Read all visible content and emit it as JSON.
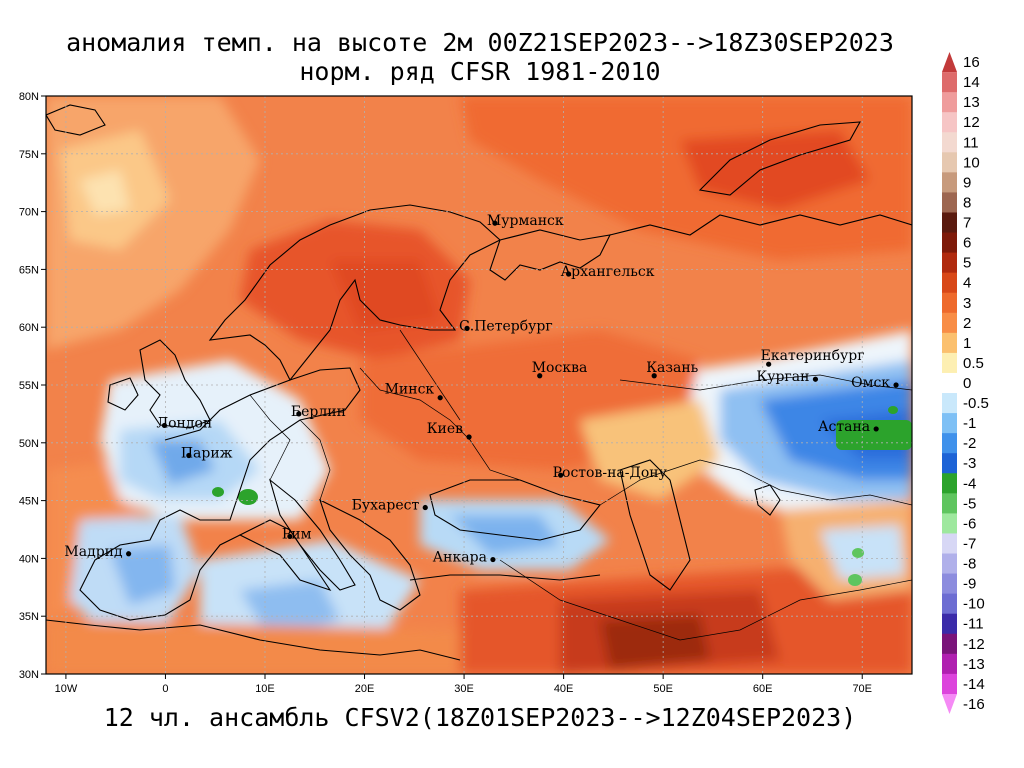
{
  "title_line1": "аномалия темп. на высоте 2м 00Z21SEP2023-->18Z30SEP2023",
  "title_line2": "норм. ряд CFSR 1981-2010",
  "footer": "12 чл. ансамбль CFSV2(18Z01SEP2023-->12Z04SEP2023)",
  "map": {
    "lon_range": [
      -12,
      75
    ],
    "lat_range": [
      30,
      80
    ],
    "lon_ticks": [
      "10W",
      "0",
      "10E",
      "20E",
      "30E",
      "40E",
      "50E",
      "60E",
      "70E"
    ],
    "lat_ticks": [
      "30N",
      "35N",
      "40N",
      "45N",
      "50N",
      "55N",
      "60N",
      "65N",
      "70N",
      "75N",
      "80N"
    ],
    "cities": [
      {
        "name": "Мурманск",
        "lon": 33.1,
        "lat": 69.0
      },
      {
        "name": "Архангельск",
        "lon": 40.5,
        "lat": 64.6
      },
      {
        "name": "С.Петербург",
        "lon": 30.3,
        "lat": 59.9
      },
      {
        "name": "Москва",
        "lon": 37.6,
        "lat": 55.8
      },
      {
        "name": "Казань",
        "lon": 49.1,
        "lat": 55.8
      },
      {
        "name": "Екатеринбург",
        "lon": 60.6,
        "lat": 56.8
      },
      {
        "name": "Курган",
        "lon": 65.3,
        "lat": 55.5
      },
      {
        "name": "Омск",
        "lon": 73.4,
        "lat": 55.0
      },
      {
        "name": "Астана",
        "lon": 71.4,
        "lat": 51.2
      },
      {
        "name": "Минск",
        "lon": 27.6,
        "lat": 53.9
      },
      {
        "name": "Берлин",
        "lon": 13.4,
        "lat": 52.5
      },
      {
        "name": "Лондон",
        "lon": -0.1,
        "lat": 51.5
      },
      {
        "name": "Париж",
        "lon": 2.35,
        "lat": 48.9
      },
      {
        "name": "Киев",
        "lon": 30.5,
        "lat": 50.5
      },
      {
        "name": "Ростов-на-Дону",
        "lon": 39.7,
        "lat": 47.2
      },
      {
        "name": "Бухарест",
        "lon": 26.1,
        "lat": 44.4
      },
      {
        "name": "Рим",
        "lon": 12.5,
        "lat": 41.9
      },
      {
        "name": "Мадрид",
        "lon": -3.7,
        "lat": 40.4
      },
      {
        "name": "Анкара",
        "lon": 32.9,
        "lat": 39.9
      }
    ]
  },
  "colorbar": {
    "labels": [
      "16",
      "14",
      "13",
      "12",
      "11",
      "10",
      "9",
      "8",
      "7",
      "6",
      "5",
      "4",
      "3",
      "2",
      "1",
      "0.5",
      "0",
      "-0.5",
      "-1",
      "-2",
      "-3",
      "-4",
      "-5",
      "-6",
      "-7",
      "-8",
      "-9",
      "-10",
      "-11",
      "-12",
      "-13",
      "-14",
      "-16"
    ],
    "colors": [
      "#c23a3a",
      "#de6b6b",
      "#ef9c9c",
      "#f6c5c5",
      "#f3d9d0",
      "#e6c8b0",
      "#c79a7c",
      "#9d6650",
      "#5a1a0e",
      "#7e1a09",
      "#b02a0e",
      "#d84818",
      "#ee6a2c",
      "#f88d46",
      "#fbc06e",
      "#fdefb2",
      "#ffffff",
      "#c9e8fb",
      "#7ec0f5",
      "#3f91eb",
      "#1d63d6",
      "#2ca32c",
      "#5fc55f",
      "#9ee89e",
      "#d7d7f5",
      "#b0b0ea",
      "#8c8cde",
      "#6d6dd2",
      "#3b2ba9",
      "#7a147a",
      "#b020b0",
      "#dc44dc",
      "#f58af5"
    ]
  }
}
